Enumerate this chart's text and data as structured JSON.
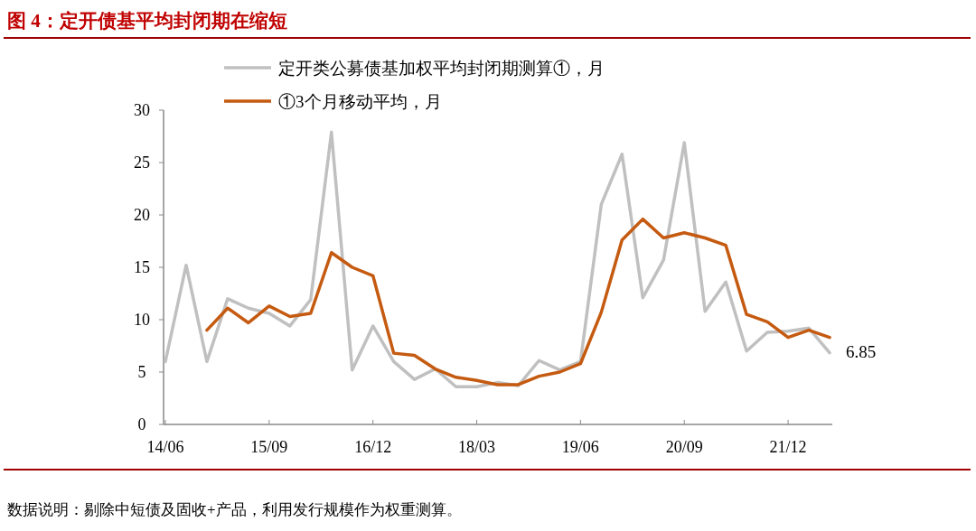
{
  "chart_data": {
    "type": "line",
    "title": "图 4：定开债基平均封闭期在缩短",
    "categories": [
      "14/06",
      null,
      null,
      null,
      null,
      "15/09",
      null,
      null,
      null,
      null,
      "16/12",
      null,
      null,
      null,
      null,
      "18/03",
      null,
      null,
      null,
      null,
      "19/06",
      null,
      null,
      null,
      null,
      "20/09",
      null,
      null,
      null,
      null,
      "21/12",
      null,
      null
    ],
    "series": [
      {
        "name": "定开类公募债基加权平均封闭期测算①，月",
        "color": "#c0c0c0",
        "values": [
          6.0,
          15.2,
          6.0,
          12.0,
          11.1,
          10.6,
          9.4,
          11.9,
          27.9,
          5.2,
          9.4,
          6.0,
          4.3,
          5.3,
          3.6,
          3.6,
          4.0,
          3.7,
          6.1,
          5.2,
          6.0,
          21.0,
          25.8,
          12.1,
          15.7,
          26.9,
          10.8,
          13.6,
          7.0,
          8.8,
          8.9,
          9.2,
          6.85
        ],
        "value_labels": [
          null,
          null,
          null,
          null,
          null,
          null,
          null,
          null,
          null,
          null,
          null,
          null,
          null,
          null,
          null,
          null,
          null,
          null,
          null,
          null,
          null,
          null,
          null,
          null,
          null,
          null,
          null,
          null,
          null,
          null,
          null,
          null,
          "6.85"
        ]
      },
      {
        "name": "①3个月移动平均，月",
        "color": "#c55a11",
        "values": [
          null,
          null,
          9.0,
          11.1,
          9.7,
          11.3,
          10.3,
          10.6,
          16.4,
          15.0,
          14.2,
          6.8,
          6.6,
          5.3,
          4.5,
          4.2,
          3.8,
          3.8,
          4.6,
          5.0,
          5.8,
          10.7,
          17.6,
          19.6,
          17.8,
          18.3,
          17.8,
          17.1,
          10.5,
          9.8,
          8.3,
          9.0,
          8.3
        ]
      }
    ],
    "ylim": [
      0,
      30
    ],
    "yticks": [
      0,
      5,
      10,
      15,
      20,
      25,
      30
    ],
    "legend": "top left",
    "grid": false,
    "annotations": [
      "数据说明：剔除中短债及固收+产品，利用发行规模作为权重测算。"
    ]
  }
}
